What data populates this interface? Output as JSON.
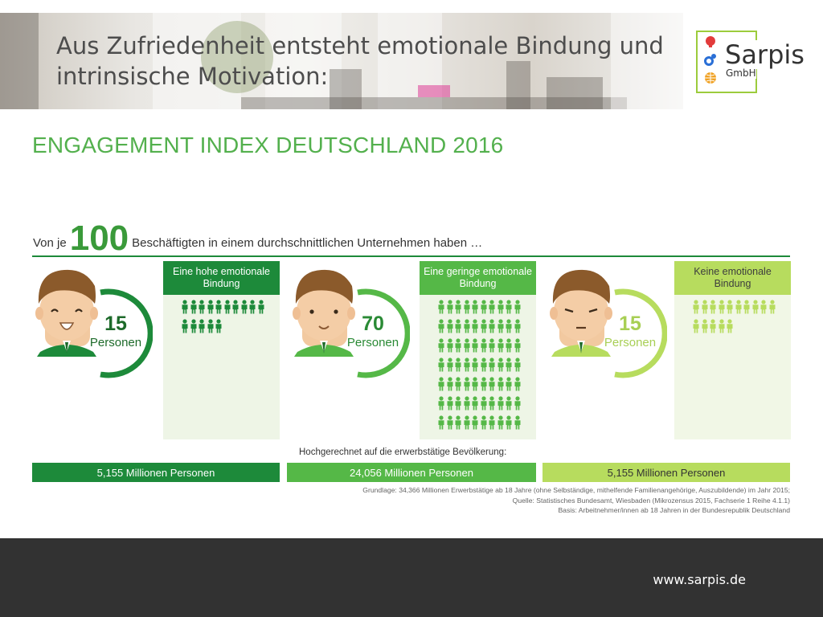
{
  "header": {
    "title": "Aus Zufriedenheit entsteht emotionale Bindung und intrinsische Motivation:"
  },
  "logo": {
    "name": "Sarpis",
    "sub": "GmbH",
    "colors": {
      "border": "#9ccc3c",
      "brain": "#e23b3b",
      "gear": "#2a6fd6",
      "globe": "#f0a020"
    }
  },
  "infographic": {
    "title": "ENGAGEMENT INDEX DEUTSCHLAND 2016",
    "intro_prefix": "Von je",
    "intro_number": "100",
    "intro_suffix": "Beschäftigten in einem durchschnittlichen Unternehmen haben …",
    "columns": [
      {
        "heading": "Eine hohe emotionale Bindung",
        "count": "15",
        "unit": "Personen",
        "icons": 15,
        "mood": "happy",
        "color": "#1d8a3a",
        "box_color": "#eef5e6",
        "total": "5,155 Millionen Personen"
      },
      {
        "heading": "Eine geringe emotionale Bindung",
        "count": "70",
        "unit": "Personen",
        "icons": 70,
        "mood": "neutral",
        "color": "#55b847",
        "box_color": "#eef5e6",
        "total": "24,056 Millionen Personen"
      },
      {
        "heading": "Keine emotionale Bindung",
        "count": "15",
        "unit": "Personen",
        "icons": 15,
        "mood": "sad",
        "color": "#b7dc5e",
        "box_color": "#f1f7e6",
        "total": "5,155 Millionen Personen"
      }
    ],
    "projection_label": "Hochgerechnet auf die erwerbstätige Bevölkerung:",
    "notes": [
      "Grundlage: 34,366 Millionen Erwerbstätige ab 18 Jahre (ohne Selbständige, mithelfende Familienangehörige, Auszubildende) im Jahr 2015;",
      "Quelle: Statistisches Bundesamt, Wiesbaden (Mikrozensus 2015, Fachserie 1 Reihe 4.1.1)",
      "Basis: Arbeitnehmer/innen ab 18 Jahren in der Bundesrepublik Deutschland"
    ]
  },
  "footer": {
    "url": "www.sarpis.de"
  }
}
